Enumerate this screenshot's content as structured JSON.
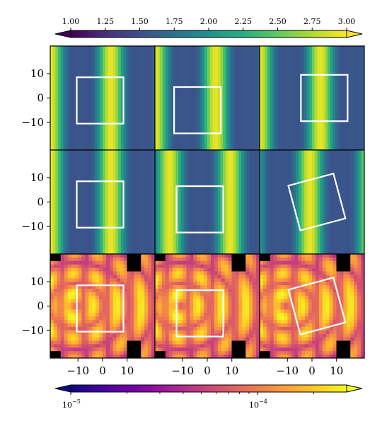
{
  "chart_data": {
    "type": "heatmap",
    "grid": {
      "rows": 3,
      "cols": 3
    },
    "colorbars": [
      {
        "name": "viridis",
        "position": "top",
        "scale": "linear",
        "range": [
          1.0,
          3.0
        ],
        "extend": "both",
        "ticks": [
          1.0,
          1.25,
          1.5,
          1.75,
          2.0,
          2.25,
          2.5,
          2.75,
          3.0
        ],
        "tick_labels": [
          "1.00",
          "1.25",
          "1.50",
          "1.75",
          "2.00",
          "2.25",
          "2.50",
          "2.75",
          "3.00"
        ]
      },
      {
        "name": "plasma",
        "position": "bottom",
        "scale": "log",
        "range": [
          1e-05,
          0.0003
        ],
        "extend": "both",
        "ticks": [
          1e-05,
          0.0001
        ],
        "tick_labels": [
          {
            "base": "10",
            "exp": "−5"
          },
          {
            "base": "10",
            "exp": "−4"
          }
        ]
      }
    ],
    "axis": {
      "xlim": [
        -19,
        19
      ],
      "ylim": [
        -19,
        19
      ],
      "x_ticks": [
        -10,
        0,
        10
      ],
      "y_ticks": [
        10,
        0,
        -10
      ],
      "x_tick_labels": [
        "−10",
        "0",
        "10"
      ],
      "y_tick_labels": [
        "10",
        "0",
        "−10"
      ]
    },
    "panels": [
      {
        "row": 0,
        "col": 0,
        "field": "stripes",
        "cmap": "viridis",
        "phase": 0.0,
        "box": {
          "center": [
            -1,
            -1
          ],
          "size": [
            19,
            19
          ],
          "angle": 0
        }
      },
      {
        "row": 0,
        "col": 1,
        "field": "stripes",
        "cmap": "viridis",
        "phase": 0.0,
        "box": {
          "center": [
            -4,
            -5
          ],
          "size": [
            19,
            19
          ],
          "angle": 0
        }
      },
      {
        "row": 0,
        "col": 2,
        "field": "stripes",
        "cmap": "viridis",
        "phase": 0.0,
        "box": {
          "center": [
            5,
            0
          ],
          "size": [
            19,
            19
          ],
          "angle": 0
        }
      },
      {
        "row": 1,
        "col": 0,
        "field": "stripes",
        "cmap": "viridis",
        "phase": 0.0,
        "box": {
          "center": [
            -1,
            -1
          ],
          "size": [
            19,
            19
          ],
          "angle": 0
        }
      },
      {
        "row": 1,
        "col": 1,
        "field": "stripes",
        "cmap": "viridis",
        "phase": -0.14,
        "box": {
          "center": [
            -3,
            -3
          ],
          "size": [
            19,
            19
          ],
          "angle": 0
        }
      },
      {
        "row": 1,
        "col": 2,
        "field": "stripes",
        "cmap": "viridis",
        "phase": 0.1,
        "box": {
          "center": [
            2,
            0
          ],
          "size": [
            19,
            19
          ],
          "angle": 15
        }
      },
      {
        "row": 2,
        "col": 0,
        "field": "error",
        "cmap": "plasma",
        "box": {
          "center": [
            -1,
            -1
          ],
          "size": [
            19,
            19
          ],
          "angle": 0
        }
      },
      {
        "row": 2,
        "col": 1,
        "field": "error",
        "cmap": "plasma",
        "box": {
          "center": [
            -3,
            -3
          ],
          "size": [
            19,
            19
          ],
          "angle": 0
        }
      },
      {
        "row": 2,
        "col": 2,
        "field": "error",
        "cmap": "plasma",
        "box": {
          "center": [
            2,
            0
          ],
          "size": [
            19,
            19
          ],
          "angle": 15
        }
      }
    ],
    "box_color": "#ffffff",
    "colors": {
      "frame": "#000000",
      "viridis": [
        "#440154",
        "#472d7b",
        "#3b528b",
        "#2c728e",
        "#21918c",
        "#28ae80",
        "#5ec962",
        "#addc30",
        "#fde725"
      ],
      "plasma": [
        "#0d0887",
        "#46039f",
        "#7201a8",
        "#9c179e",
        "#bd3786",
        "#d8576b",
        "#ed7953",
        "#fb9f3a",
        "#fdca26",
        "#f0f921"
      ]
    }
  }
}
